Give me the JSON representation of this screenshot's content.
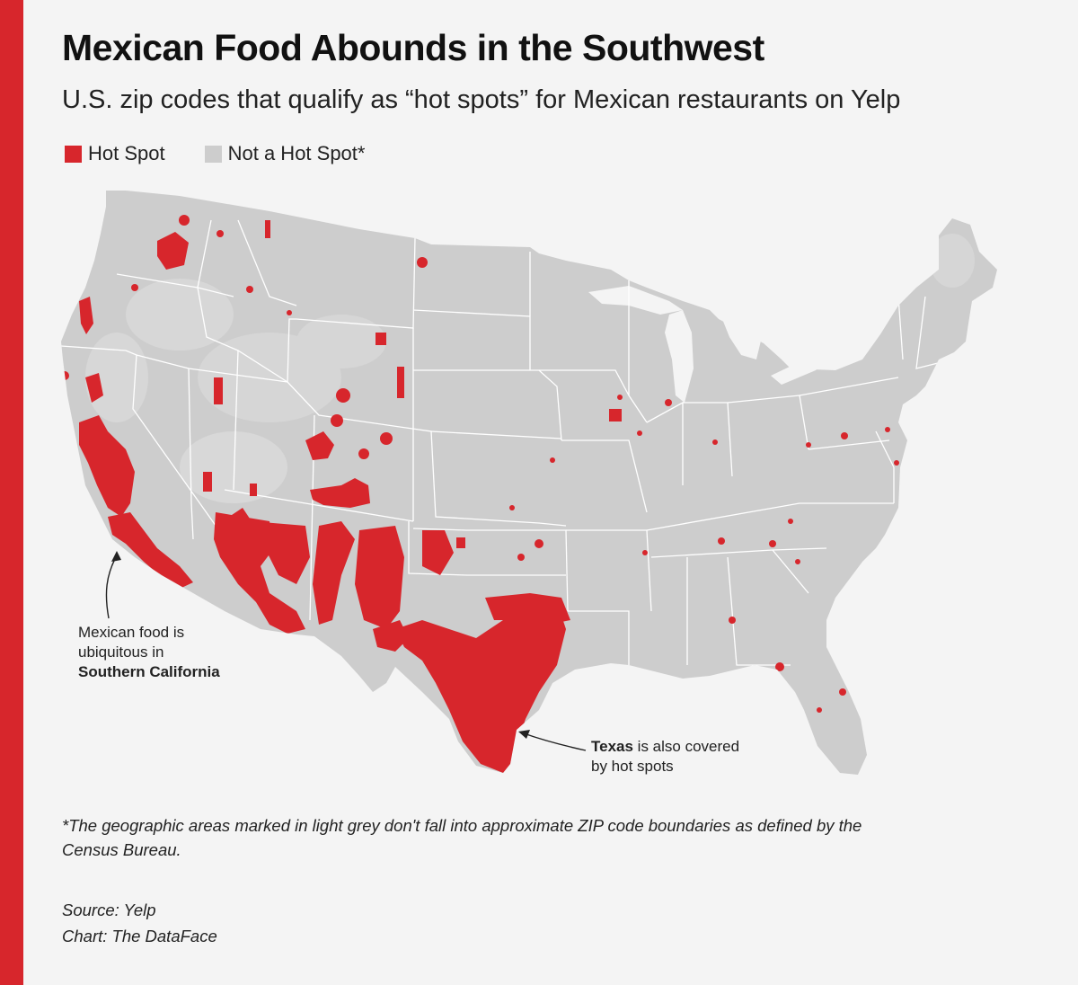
{
  "title": "Mexican Food Abounds in the Southwest",
  "subtitle": "U.S. zip codes that qualify as “hot spots” for Mexican restaurants on Yelp",
  "legend": [
    {
      "label": "Hot Spot",
      "color": "#d7262c"
    },
    {
      "label": "Not a Hot Spot*",
      "color": "#cdcdcd"
    }
  ],
  "annotations": {
    "california": {
      "line1": "Mexican food is",
      "line2": "ubiquitous in",
      "bold": "Southern California"
    },
    "texas": {
      "bold": "Texas",
      "line1_rest": " is also covered",
      "line2": "by hot spots"
    }
  },
  "footnote": "*The geographic areas marked in light grey don't fall into approximate ZIP code boundaries as defined by the Census Bureau.",
  "source": "Source: Yelp",
  "credit": "Chart: The DataFace",
  "colors": {
    "accent": "#d7262c",
    "land": "#cdcdcd",
    "background": "#f4f4f4",
    "border": "#ffffff"
  }
}
